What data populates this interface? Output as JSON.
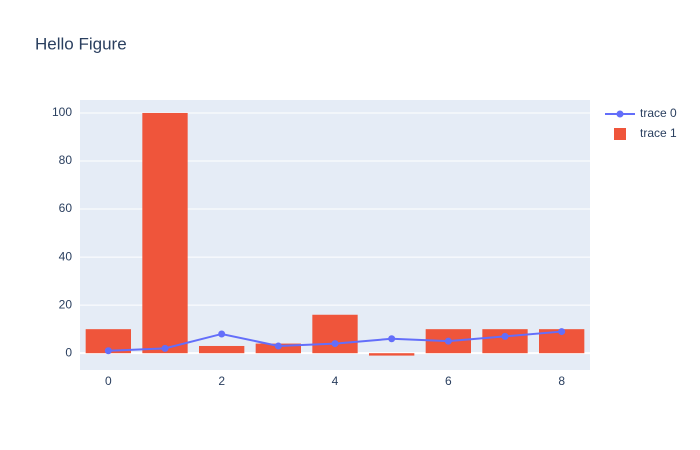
{
  "chart_data": {
    "type": "bar-line",
    "title": "Hello Figure",
    "x": [
      0,
      1,
      2,
      3,
      4,
      5,
      6,
      7,
      8
    ],
    "series": [
      {
        "name": "trace 0",
        "type": "line",
        "color": "#636efa",
        "values": [
          1,
          2,
          8,
          3,
          4,
          6,
          5,
          7,
          9
        ]
      },
      {
        "name": "trace 1",
        "type": "bar",
        "color": "#ef553b",
        "values": [
          10,
          100,
          3,
          4,
          16,
          -1,
          10,
          10,
          10
        ]
      }
    ],
    "xlim": [
      -0.5,
      8.5
    ],
    "xticks": [
      0,
      2,
      4,
      6,
      8
    ],
    "ylim": [
      -7,
      105.4
    ],
    "yticks": [
      0,
      20,
      40,
      60,
      80,
      100
    ],
    "ygrid": true,
    "xgrid": false,
    "legend": "top-right",
    "plot_bgcolor": "#e5ecf6"
  }
}
